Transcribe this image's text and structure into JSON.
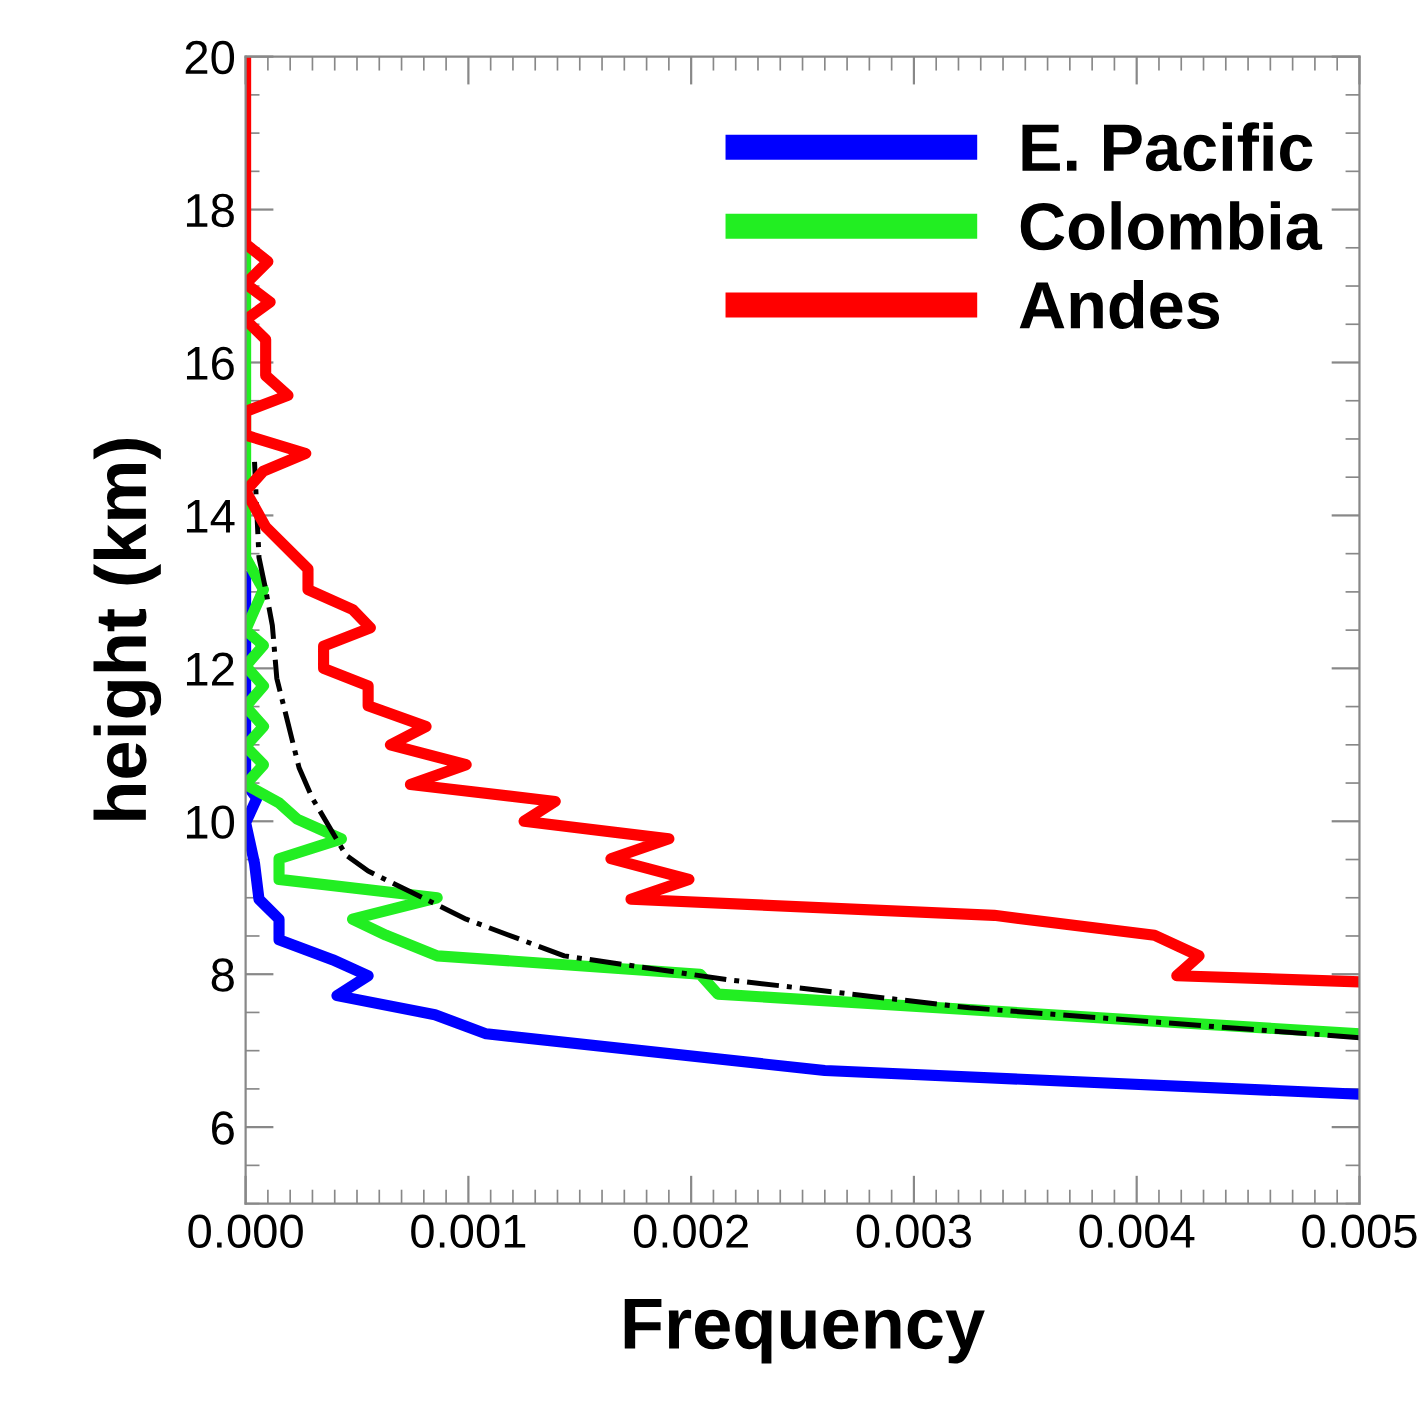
{
  "chart_data": {
    "type": "line",
    "xlabel": "Frequency",
    "ylabel": "height (km)",
    "xlim": [
      0,
      0.005
    ],
    "ylim": [
      5,
      20
    ],
    "xticks": [
      {
        "value": 0,
        "label": "0.000"
      },
      {
        "value": 0.001,
        "label": "0.001"
      },
      {
        "value": 0.002,
        "label": "0.002"
      },
      {
        "value": 0.003,
        "label": "0.003"
      },
      {
        "value": 0.004,
        "label": "0.004"
      },
      {
        "value": 0.005,
        "label": "0.005"
      }
    ],
    "yticks": [
      6,
      8,
      10,
      12,
      14,
      16,
      18,
      20
    ],
    "grid": false,
    "legend": "top right",
    "marker": "none",
    "series": [
      {
        "name": "E. Pacific",
        "color": "#0000ff",
        "line_style": "solid",
        "x": [
          0.005,
          0.0026,
          0.00108,
          0.00085,
          0.00041,
          0.00055,
          0.00039,
          0.00015,
          0.00015,
          6e-05,
          4e-05,
          0,
          5e-05,
          0,
          0
        ],
        "values": [
          6.43,
          6.74,
          7.22,
          7.47,
          7.72,
          7.98,
          8.19,
          8.45,
          8.72,
          8.98,
          9.45,
          9.98,
          10.3,
          10.5,
          13.2
        ]
      },
      {
        "name": "Colombia",
        "color": "#22ee22",
        "line_style": "solid",
        "x": [
          0.005,
          0.00212,
          0.00204,
          0.00086,
          0.00063,
          0.00048,
          0.00086,
          0.00015,
          0.00015,
          0.00043,
          0.00023,
          0.00015,
          0,
          8e-05,
          0,
          8e-05,
          0,
          8e-05,
          0,
          8e-05,
          0,
          8e-05,
          0,
          0
        ],
        "values": [
          7.22,
          7.74,
          8.0,
          8.24,
          8.51,
          8.72,
          9.0,
          9.24,
          9.51,
          9.77,
          10.03,
          10.24,
          10.48,
          10.74,
          10.98,
          11.24,
          11.5,
          11.77,
          12.03,
          12.3,
          12.5,
          13.03,
          13.45,
          17.5
        ]
      },
      {
        "color": "#000000",
        "line_style": "dashdot",
        "x": [
          0.005,
          0.00325,
          0.00216,
          0.00143,
          0.00099,
          0.00055,
          0.00045,
          0.0003,
          0.00024,
          0.00014,
          0.00012,
          9e-05,
          6e-05,
          4e-05
        ],
        "values": [
          7.17,
          7.56,
          7.93,
          8.24,
          8.72,
          9.35,
          9.56,
          10.3,
          10.7,
          11.87,
          12.56,
          13.03,
          13.45,
          14.7
        ]
      },
      {
        "name": "Andes",
        "color": "#ff0000",
        "line_style": "solid",
        "x": [
          0.005,
          0.00418,
          0.00428,
          0.00408,
          0.00336,
          0.00173,
          0.00199,
          0.00164,
          0.0019,
          0.00125,
          0.00139,
          0.00074,
          0.00099,
          0.00065,
          0.00081,
          0.00055,
          0.00055,
          0.00035,
          0.00035,
          0.00056,
          0.00048,
          0.00028,
          0.00028,
          9e-05,
          0,
          8e-05,
          0.00027,
          0,
          0,
          0.00019,
          9e-05,
          9e-05,
          0,
          0.00011,
          0,
          0.0001,
          0,
          0
        ],
        "values": [
          7.9,
          7.98,
          8.24,
          8.51,
          8.77,
          8.98,
          9.24,
          9.51,
          9.77,
          10.0,
          10.26,
          10.48,
          10.74,
          11.0,
          11.24,
          11.51,
          11.77,
          12.0,
          12.29,
          12.53,
          12.77,
          13.03,
          13.3,
          13.85,
          14.32,
          14.58,
          14.81,
          15.05,
          15.36,
          15.57,
          15.83,
          16.3,
          16.56,
          16.79,
          17.03,
          17.32,
          17.55,
          20.0
        ]
      }
    ]
  }
}
